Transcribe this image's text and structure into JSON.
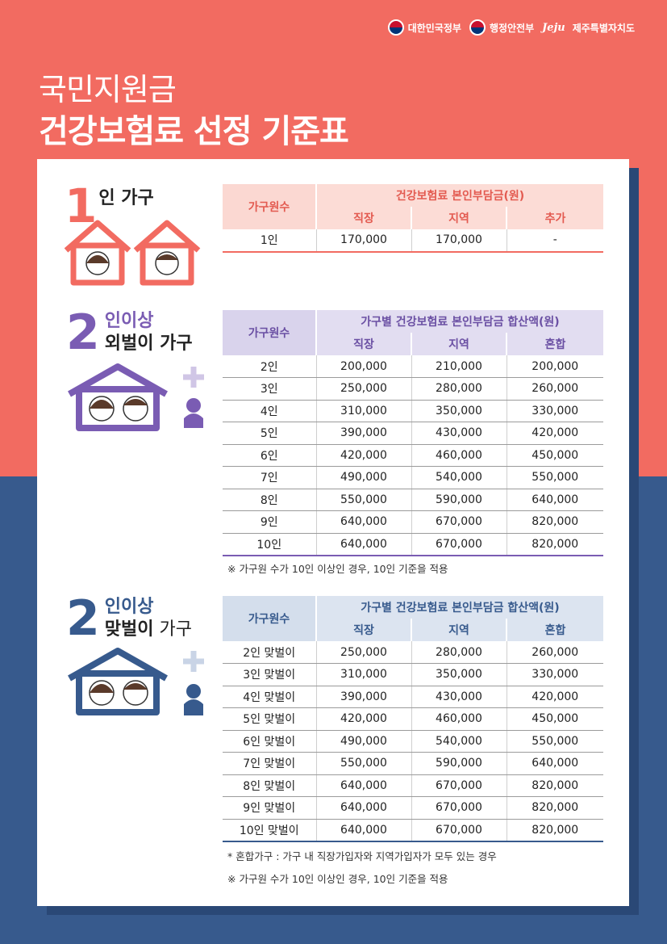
{
  "header": {
    "logos": [
      "대한민국정부",
      "행정안전부",
      "제주특별자치도"
    ],
    "jeju_mark": "Jeju"
  },
  "title": {
    "line1": "국민지원금",
    "line2": "건강보험료 선정 기준표"
  },
  "colors": {
    "coral": "#f26b61",
    "purple": "#7a5cb3",
    "navy": "#375a8d"
  },
  "section1": {
    "num": "1",
    "label": "인 가구",
    "table": {
      "col_header": "가구원수",
      "group_header": "건강보험료 본인부담금(원)",
      "subheaders": [
        "직장",
        "지역",
        "추가"
      ],
      "rows": [
        [
          "1인",
          "170,000",
          "170,000",
          "-"
        ]
      ]
    }
  },
  "section2": {
    "num": "2",
    "label_top": "인이상",
    "label_bottom": "외벌이 가구",
    "table": {
      "col_header": "가구원수",
      "group_header": "가구별 건강보험료 본인부담금 합산액(원)",
      "subheaders": [
        "직장",
        "지역",
        "혼합"
      ],
      "rows": [
        [
          "2인",
          "200,000",
          "210,000",
          "200,000"
        ],
        [
          "3인",
          "250,000",
          "280,000",
          "260,000"
        ],
        [
          "4인",
          "310,000",
          "350,000",
          "330,000"
        ],
        [
          "5인",
          "390,000",
          "430,000",
          "420,000"
        ],
        [
          "6인",
          "420,000",
          "460,000",
          "450,000"
        ],
        [
          "7인",
          "490,000",
          "540,000",
          "550,000"
        ],
        [
          "8인",
          "550,000",
          "590,000",
          "640,000"
        ],
        [
          "9인",
          "640,000",
          "670,000",
          "820,000"
        ],
        [
          "10인",
          "640,000",
          "670,000",
          "820,000"
        ]
      ]
    },
    "note": "※ 가구원 수가 10인 이상인 경우, 10인 기준을 적용"
  },
  "section3": {
    "num": "2",
    "label_top": "인이상",
    "label_bottom_bold": "맞벌이",
    "label_bottom_rest": " 가구",
    "table": {
      "col_header": "가구원수",
      "group_header": "가구별 건강보험료 본인부담금 합산액(원)",
      "subheaders": [
        "직장",
        "지역",
        "혼합"
      ],
      "rows": [
        [
          "2인 맞벌이",
          "250,000",
          "280,000",
          "260,000"
        ],
        [
          "3인 맞벌이",
          "310,000",
          "350,000",
          "330,000"
        ],
        [
          "4인 맞벌이",
          "390,000",
          "430,000",
          "420,000"
        ],
        [
          "5인 맞벌이",
          "420,000",
          "460,000",
          "450,000"
        ],
        [
          "6인 맞벌이",
          "490,000",
          "540,000",
          "550,000"
        ],
        [
          "7인 맞벌이",
          "550,000",
          "590,000",
          "640,000"
        ],
        [
          "8인 맞벌이",
          "640,000",
          "670,000",
          "820,000"
        ],
        [
          "9인 맞벌이",
          "640,000",
          "670,000",
          "820,000"
        ],
        [
          "10인 맞벌이",
          "640,000",
          "670,000",
          "820,000"
        ]
      ]
    },
    "note1": "* 혼합가구 : 가구 내 직장가입자와 지역가입자가 모두 있는 경우",
    "note2": "※ 가구원 수가 10인 이상인 경우, 10인 기준을 적용"
  }
}
